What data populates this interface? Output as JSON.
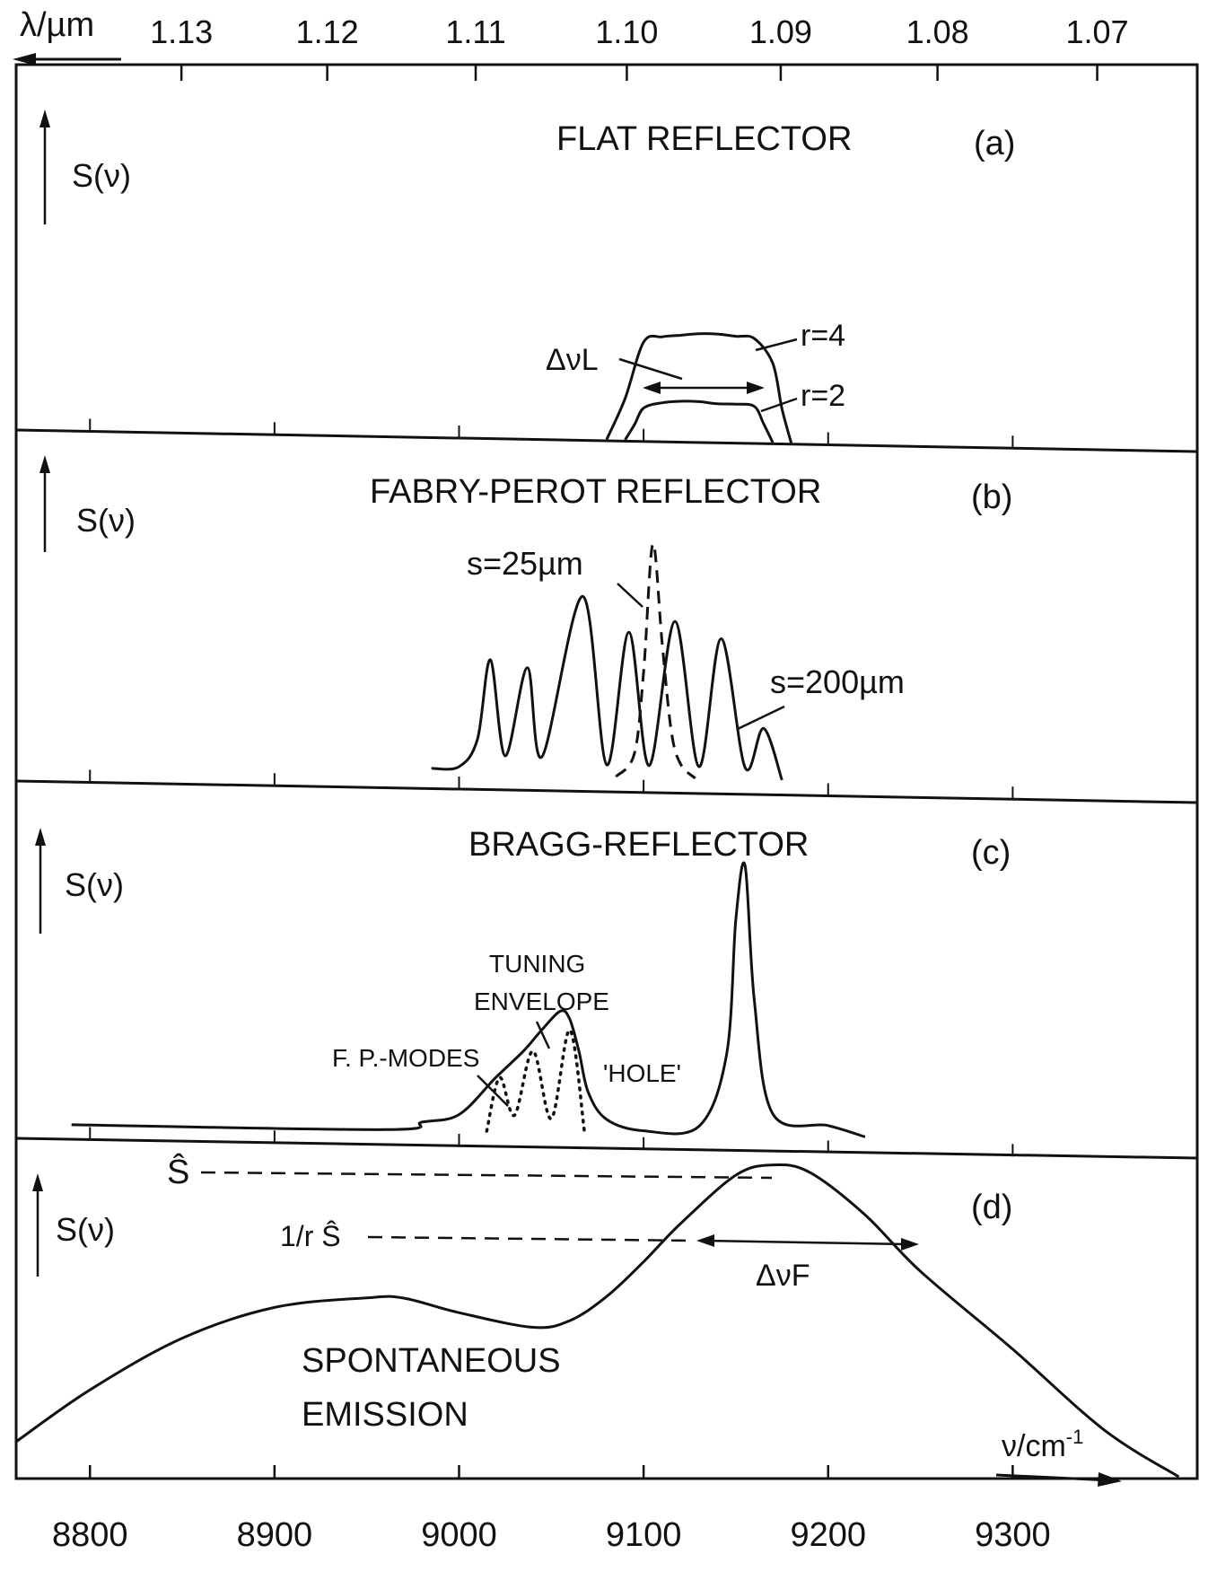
{
  "figure": {
    "top_axis": {
      "label": "λ/µm",
      "ticks": [
        "1.13",
        "1.12",
        "1.11",
        "1.10",
        "1.09",
        "1.08",
        "1.07"
      ]
    },
    "bottom_axis": {
      "label": "ν/cm",
      "label_exp": "-1",
      "ticks": [
        "8800",
        "8900",
        "9000",
        "9100",
        "9200",
        "9300"
      ]
    }
  },
  "chart_data": [
    {
      "panel": "a",
      "type": "line",
      "title": "FLAT REFLECTOR",
      "tag": "(a)",
      "ylabel": "S(ν)",
      "x_unit": "cm^-1",
      "xlim": [
        8760,
        9400
      ],
      "annotations": [
        "ΔνL",
        "r=4",
        "r=2"
      ],
      "series": [
        {
          "name": "r=4",
          "x": [
            9080,
            9090,
            9100,
            9110,
            9120,
            9130,
            9140,
            9150,
            9160,
            9170,
            9175,
            9180
          ],
          "y": [
            0.0,
            0.22,
            0.52,
            0.55,
            0.56,
            0.57,
            0.57,
            0.56,
            0.55,
            0.42,
            0.18,
            0.0
          ]
        },
        {
          "name": "r=2",
          "x": [
            9090,
            9095,
            9100,
            9110,
            9120,
            9130,
            9140,
            9150,
            9160,
            9165,
            9170
          ],
          "y": [
            0.0,
            0.08,
            0.17,
            0.2,
            0.21,
            0.21,
            0.2,
            0.2,
            0.19,
            0.1,
            0.0
          ]
        }
      ]
    },
    {
      "panel": "b",
      "type": "line",
      "title": "FABRY-PEROT REFLECTOR",
      "tag": "(b)",
      "ylabel": "S(ν)",
      "xlim": [
        8760,
        9400
      ],
      "annotations": [
        "s=25µm",
        "s=200µm"
      ],
      "series": [
        {
          "name": "s=200µm",
          "x": [
            8985,
            9000,
            9010,
            9017,
            9025,
            9037,
            9045,
            9067,
            9080,
            9092,
            9103,
            9117,
            9130,
            9142,
            9155,
            9165,
            9175
          ],
          "y": [
            0.02,
            0.03,
            0.15,
            0.49,
            0.08,
            0.46,
            0.08,
            0.77,
            0.05,
            0.62,
            0.05,
            0.67,
            0.05,
            0.6,
            0.05,
            0.22,
            0.0
          ]
        },
        {
          "name": "s=25µm",
          "x": [
            9085,
            9095,
            9100,
            9105,
            9110,
            9115,
            9120,
            9128
          ],
          "y": [
            0.0,
            0.1,
            0.45,
            1.0,
            0.58,
            0.2,
            0.06,
            0.0
          ]
        }
      ]
    },
    {
      "panel": "c",
      "type": "line",
      "title": "BRAGG-REFLECTOR",
      "tag": "(c)",
      "ylabel": "S(ν)",
      "xlim": [
        8760,
        9400
      ],
      "annotations": [
        "TUNING",
        "ENVELOPE",
        "F. P.-MODES",
        "'HOLE'"
      ],
      "series": [
        {
          "name": "TUNING ENVELOPE",
          "x": [
            8790,
            8960,
            8980,
            9000,
            9020,
            9035,
            9045,
            9055,
            9060,
            9065,
            9070,
            9080,
            9100,
            9130,
            9145,
            9150,
            9155,
            9160,
            9170,
            9200,
            9220
          ],
          "y": [
            0.0,
            0.0,
            0.03,
            0.06,
            0.2,
            0.3,
            0.38,
            0.45,
            0.42,
            0.3,
            0.15,
            0.05,
            0.01,
            0.03,
            0.3,
            0.8,
            1.0,
            0.5,
            0.08,
            0.04,
            0.0
          ]
        },
        {
          "name": "F. P.-MODES",
          "x": [
            9015,
            9022,
            9030,
            9040,
            9050,
            9060,
            9068
          ],
          "y": [
            0.0,
            0.2,
            0.06,
            0.3,
            0.05,
            0.38,
            0.0
          ]
        }
      ]
    },
    {
      "panel": "d",
      "type": "line",
      "title": "",
      "tag": "(d)",
      "ylabel": "S(ν)",
      "xlim": [
        8760,
        9400
      ],
      "annotations": [
        "Ŝ",
        "1/r Ŝ",
        "ΔνF",
        "SPONTANEOUS",
        "EMISSION"
      ],
      "series": [
        {
          "name": "SPONTANEOUS EMISSION",
          "x": [
            8760,
            8800,
            8850,
            8900,
            8950,
            8970,
            9000,
            9040,
            9060,
            9080,
            9100,
            9120,
            9150,
            9170,
            9190,
            9220,
            9250,
            9300,
            9350,
            9390
          ],
          "y": [
            0.19,
            0.34,
            0.49,
            0.58,
            0.61,
            0.61,
            0.57,
            0.53,
            0.55,
            0.62,
            0.72,
            0.83,
            0.97,
            1.0,
            0.98,
            0.86,
            0.7,
            0.48,
            0.25,
            0.12
          ]
        }
      ]
    }
  ]
}
